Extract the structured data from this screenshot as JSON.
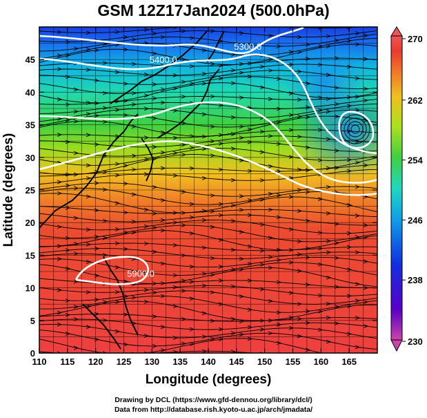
{
  "title": "GSM 12Z17Jan2024 (500.0hPa)",
  "footer": {
    "line1": "Drawing by DCL (https://www.gfd-dennou.org/library/dcl/)",
    "line2": "Data from http://database.rish.kyoto-u.ac.jp/arch/jmadata/"
  },
  "chart_data": {
    "type": "heatmap",
    "variable_note": "500hPa temperature (shaded), geopotential height contours (white), wind streamlines (black)",
    "xlabel": "Longitude (degrees)",
    "ylabel": "Latitude  (degrees)",
    "xlim": [
      110,
      170
    ],
    "ylim": [
      0,
      50
    ],
    "x_ticks": [
      110,
      115,
      120,
      125,
      130,
      135,
      140,
      145,
      150,
      155,
      160,
      165
    ],
    "y_ticks": [
      0,
      5,
      10,
      15,
      20,
      25,
      30,
      35,
      40,
      45
    ],
    "grid": true,
    "colorbar": {
      "min": 230,
      "max": 270,
      "ticks": [
        "270",
        "262",
        "254",
        "246",
        "238",
        "230"
      ],
      "colors": [
        "#cc44aa",
        "#5a00c8",
        "#1030e0",
        "#10a0e8",
        "#20d8c0",
        "#40d040",
        "#a8e020",
        "#f0c020",
        "#f07828",
        "#e83c30",
        "#ee5555"
      ]
    },
    "contour_labels": [
      {
        "text": "5300.0",
        "lon": 147,
        "lat": 46.5
      },
      {
        "text": "5400.0",
        "lon": 132,
        "lat": 44.5
      },
      {
        "text": "5900.0",
        "lon": 128,
        "lat": 11.7
      }
    ]
  }
}
